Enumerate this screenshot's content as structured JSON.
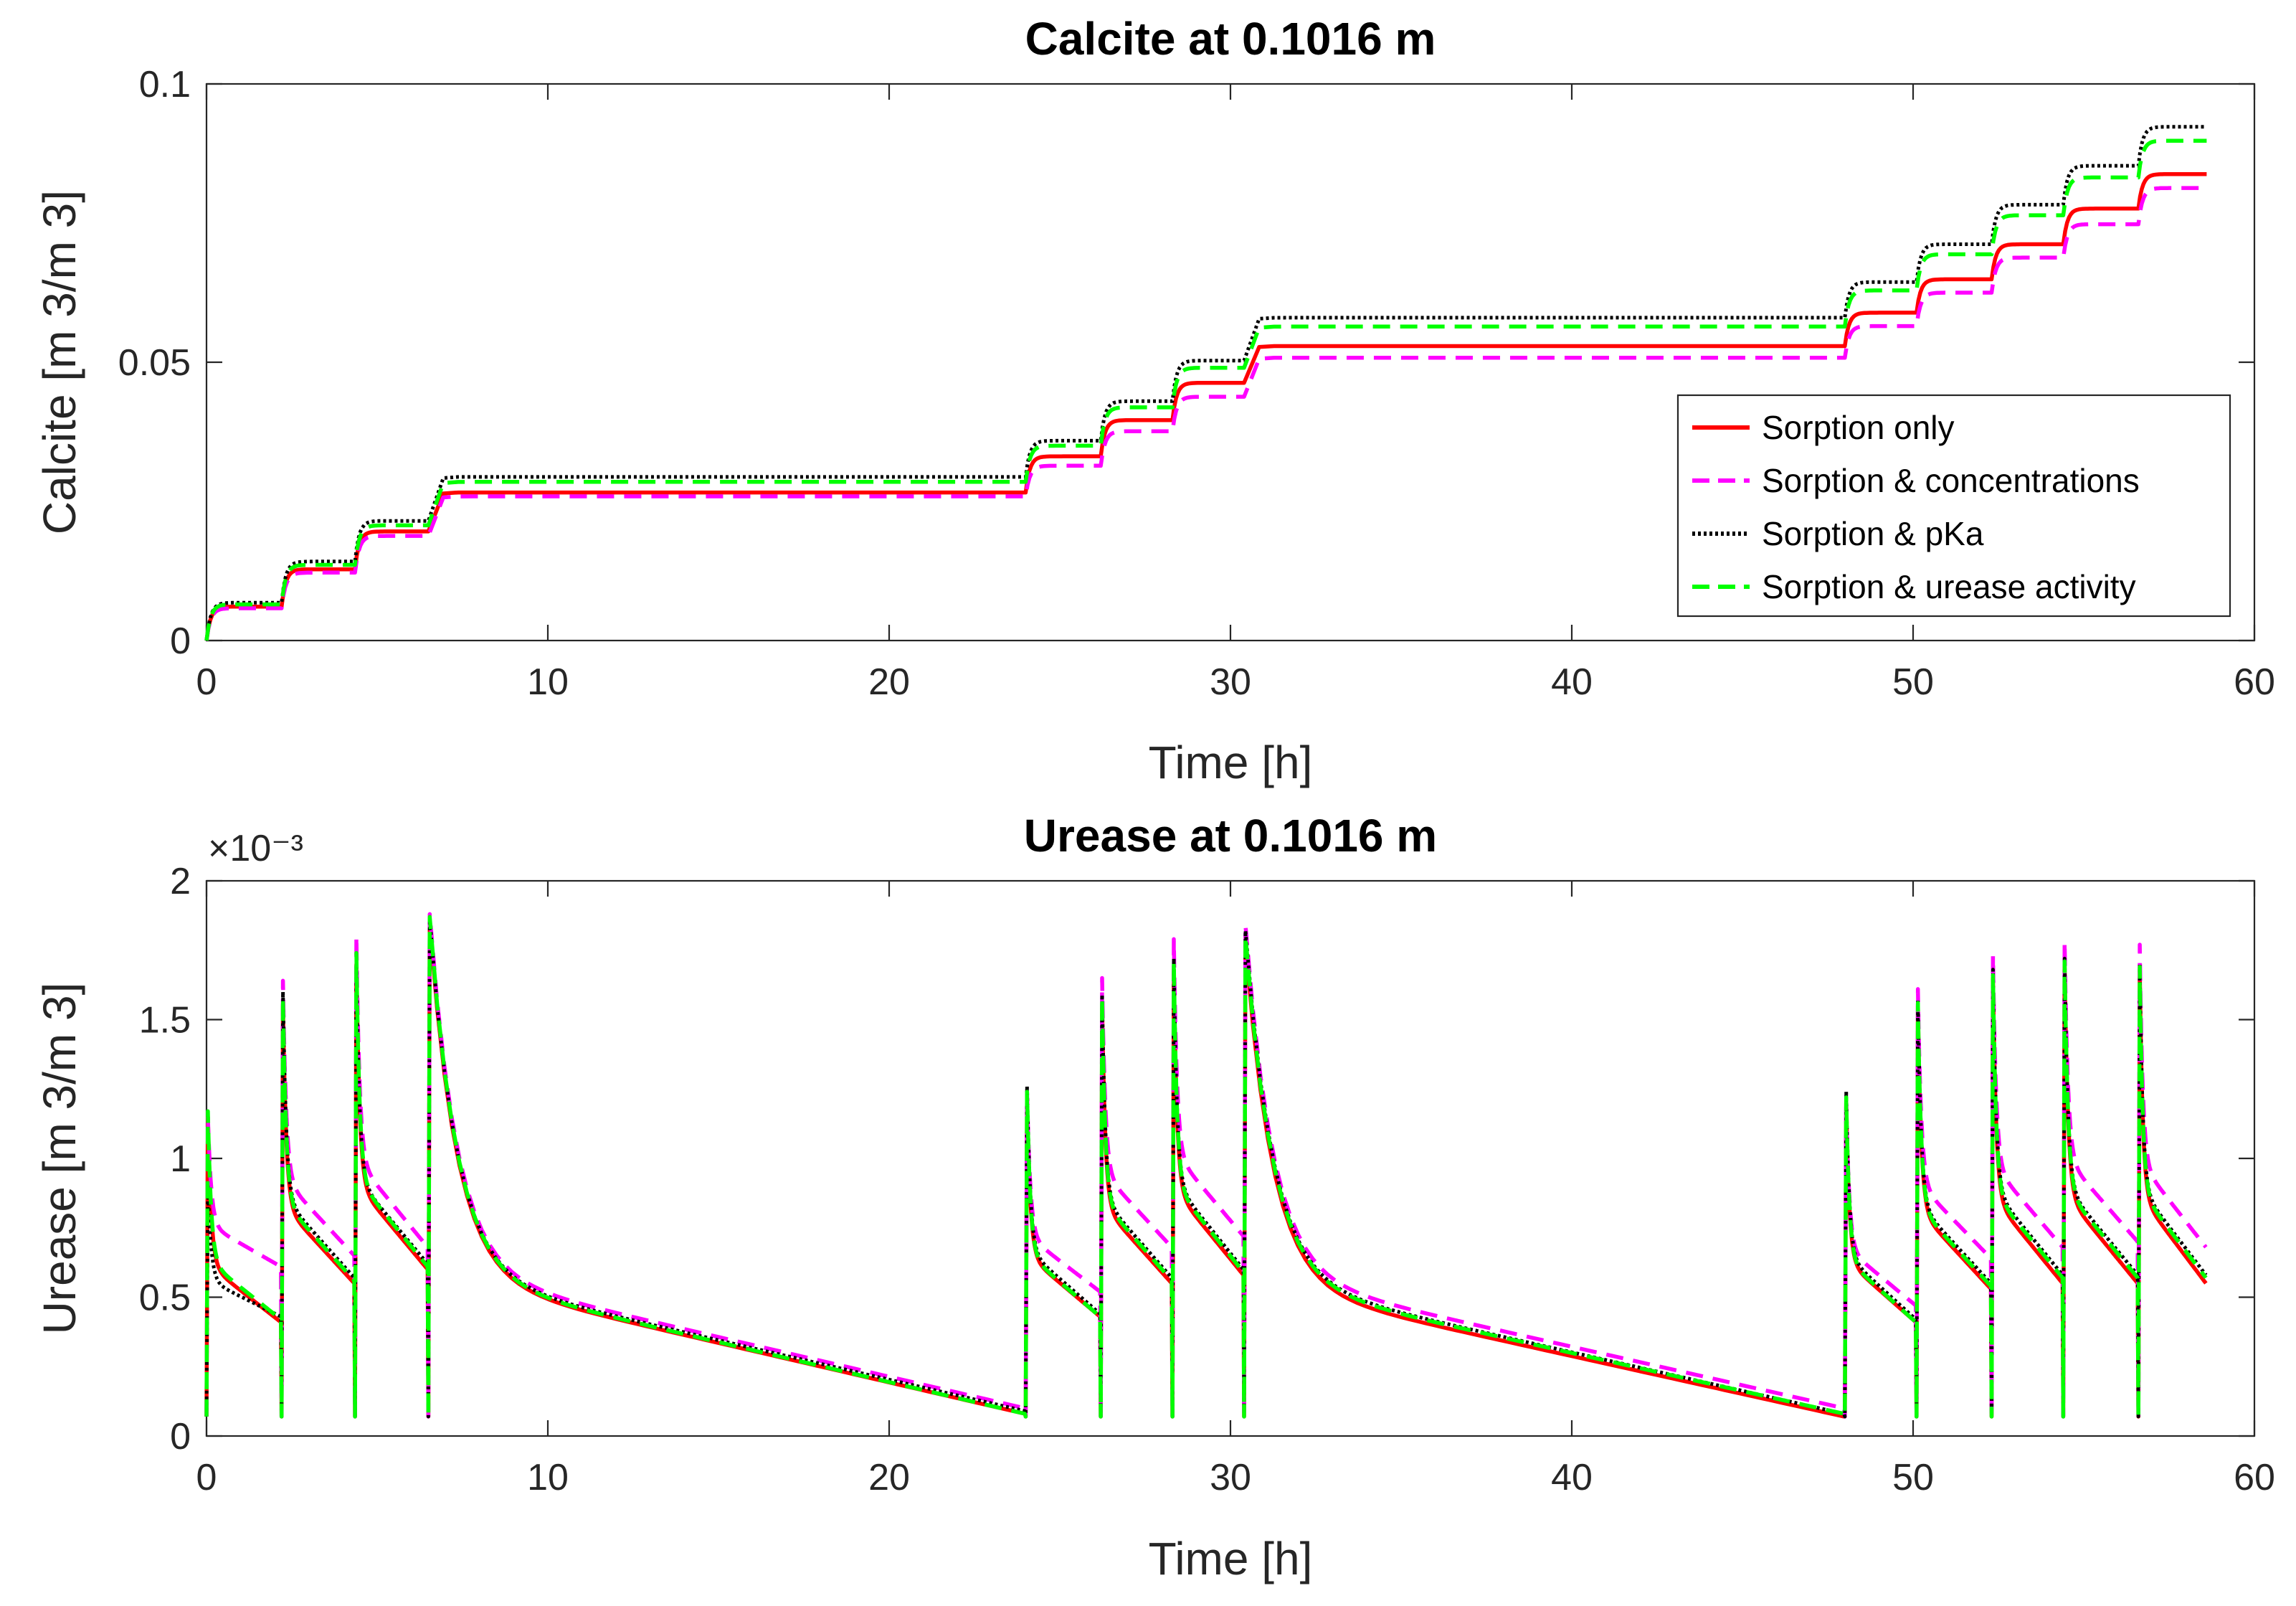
{
  "chart_data": [
    {
      "type": "line",
      "title": "Calcite at 0.1016 m",
      "xlabel": "Time [h]",
      "ylabel": "Calcite [m 3/m 3]",
      "xlim": [
        0,
        60
      ],
      "ylim": [
        0,
        0.1
      ],
      "xticks": [
        0,
        10,
        20,
        30,
        40,
        50,
        60
      ],
      "xtick_labels": [
        "0",
        "10",
        "20",
        "30",
        "40",
        "50",
        "60"
      ],
      "yticks": [
        0,
        0.05,
        0.1
      ],
      "ytick_labels": [
        "0",
        "0.05",
        "0.1"
      ],
      "legend": {
        "position": "lower-right",
        "entries": [
          "Sorption only",
          "Sorption & concentrations",
          "Sorption & pKa",
          "Sorption & urease activity"
        ]
      },
      "injection_times": [
        0,
        2.2,
        4.35,
        6.5,
        24,
        26.2,
        28.3,
        30.4,
        48,
        50.1,
        52.3,
        54.4,
        56.6
      ],
      "end_time": 58.6,
      "series": [
        {
          "name": "Sorption only",
          "color": "#ff0000",
          "dash": "solid",
          "plateaus": [
            0.0061,
            0.0128,
            0.0196,
            0.0266,
            0.0331,
            0.0396,
            0.0463,
            0.0529,
            0.0589,
            0.0649,
            0.0712,
            0.0776,
            0.0838
          ]
        },
        {
          "name": "Sorption & concentrations",
          "color": "#ff00ff",
          "dash": "dashed",
          "plateaus": [
            0.0058,
            0.0122,
            0.0188,
            0.0259,
            0.0314,
            0.0376,
            0.0438,
            0.0508,
            0.0565,
            0.0625,
            0.0688,
            0.0748,
            0.0813
          ]
        },
        {
          "name": "Sorption & pKa",
          "color": "#000000",
          "dash": "dotted",
          "plateaus": [
            0.0068,
            0.0142,
            0.0215,
            0.0294,
            0.0359,
            0.043,
            0.0503,
            0.058,
            0.0644,
            0.0712,
            0.0783,
            0.0853,
            0.0923
          ]
        },
        {
          "name": "Sorption & urease activity",
          "color": "#00ff00",
          "dash": "dashed",
          "plateaus": [
            0.0065,
            0.0136,
            0.0207,
            0.0285,
            0.035,
            0.0419,
            0.049,
            0.0564,
            0.0629,
            0.0694,
            0.0764,
            0.0832,
            0.0898
          ]
        }
      ]
    },
    {
      "type": "line",
      "title": "Urease at 0.1016 m",
      "xlabel": "Time [h]",
      "ylabel": "Urease [m 3/m 3]",
      "y_scale_label": "×10⁻³",
      "xlim": [
        0,
        60
      ],
      "ylim": [
        0,
        0.002
      ],
      "xticks": [
        0,
        10,
        20,
        30,
        40,
        50,
        60
      ],
      "xtick_labels": [
        "0",
        "10",
        "20",
        "30",
        "40",
        "50",
        "60"
      ],
      "yticks": [
        0,
        0.0005,
        0.001,
        0.0015,
        0.002
      ],
      "ytick_labels": [
        "0",
        "0.5",
        "1",
        "1.5",
        "2"
      ],
      "injection_times": [
        0,
        2.2,
        4.35,
        6.5,
        24,
        26.2,
        28.3,
        30.4,
        48,
        50.1,
        52.3,
        54.4,
        56.6
      ],
      "end_time": 58.6,
      "series": [
        {
          "name": "Sorption only",
          "color": "#ff0000",
          "dash": "solid",
          "peaks": [
            0.00115,
            0.00155,
            0.0017,
            0.00185,
            0.00122,
            0.00155,
            0.00168,
            0.00178,
            0.0012,
            0.00155,
            0.00165,
            0.0017,
            0.00168
          ],
          "troughs": [
            0.00041,
            0.00055,
            0.0006,
            8e-05,
            0.00043,
            0.00055,
            0.00058,
            7e-05,
            0.00041,
            0.00053,
            0.00055,
            0.00055,
            0.00055
          ]
        },
        {
          "name": "Sorption & concentrations",
          "color": "#ff00ff",
          "dash": "dashed",
          "peaks": [
            0.00115,
            0.00164,
            0.0018,
            0.00188,
            0.00124,
            0.00165,
            0.00179,
            0.00184,
            0.00121,
            0.00161,
            0.00173,
            0.00178,
            0.00177
          ],
          "troughs": [
            0.00061,
            0.00065,
            0.00068,
            0.0001,
            0.00052,
            0.00068,
            0.00072,
            0.0001,
            0.00047,
            0.00064,
            0.00068,
            0.0007,
            0.00068
          ]
        },
        {
          "name": "Sorption & pKa",
          "color": "#000000",
          "dash": "dotted",
          "peaks": [
            0.0009,
            0.0016,
            0.00172,
            0.00186,
            0.00126,
            0.00159,
            0.00172,
            0.00182,
            0.00124,
            0.00157,
            0.00168,
            0.00172,
            0.0017
          ],
          "troughs": [
            0.00043,
            0.00057,
            0.00062,
            9e-05,
            0.00044,
            0.00057,
            0.0006,
            8e-05,
            0.00042,
            0.00055,
            0.00058,
            0.00058,
            0.00058
          ]
        },
        {
          "name": "Sorption & urease activity",
          "color": "#00ff00",
          "dash": "dashed",
          "peaks": [
            0.00117,
            0.00158,
            0.00174,
            0.00187,
            0.00124,
            0.00158,
            0.00171,
            0.0018,
            0.00122,
            0.00156,
            0.00166,
            0.00171,
            0.00169
          ],
          "troughs": [
            0.00042,
            0.00056,
            0.00061,
            8e-05,
            0.00043,
            0.00056,
            0.00059,
            8e-05,
            0.00041,
            0.00054,
            0.00057,
            0.00057,
            0.00057
          ]
        }
      ]
    }
  ]
}
